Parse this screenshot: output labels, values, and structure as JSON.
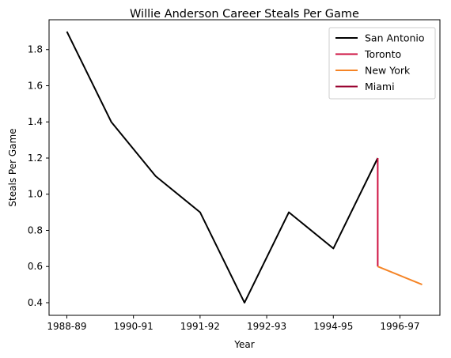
{
  "chart_data": {
    "type": "line",
    "title": "Willie Anderson  Career Steals Per Game",
    "xlabel": "Year",
    "ylabel": "Steals Per Game",
    "x_ticks": [
      {
        "value": 0,
        "label": "1988-89"
      },
      {
        "value": 1.5,
        "label": "1990-91"
      },
      {
        "value": 3,
        "label": "1991-92"
      },
      {
        "value": 4.5,
        "label": "1992-93"
      },
      {
        "value": 6,
        "label": "1994-95"
      },
      {
        "value": 7.5,
        "label": "1996-97"
      }
    ],
    "y_ticks": [
      0.4,
      0.6,
      0.8,
      1.0,
      1.2,
      1.4,
      1.6,
      1.8
    ],
    "xlim": [
      -0.4,
      8.4
    ],
    "ylim": [
      0.33,
      1.965
    ],
    "grid": false,
    "legend_position": "top-right",
    "series": [
      {
        "name": "San Antonio",
        "color": "#000000",
        "x": [
          0,
          1,
          2,
          3,
          4,
          5,
          6,
          7
        ],
        "y": [
          1.9,
          1.4,
          1.1,
          0.9,
          0.4,
          0.9,
          0.7,
          1.2
        ]
      },
      {
        "name": "Toronto",
        "color": "#ce1141",
        "x": [
          7,
          7
        ],
        "y": [
          1.2,
          0.6
        ]
      },
      {
        "name": "New York",
        "color": "#f58426",
        "x": [
          7,
          8
        ],
        "y": [
          0.6,
          0.5
        ]
      },
      {
        "name": "Miami",
        "color": "#98002e",
        "x": [],
        "y": []
      }
    ]
  }
}
